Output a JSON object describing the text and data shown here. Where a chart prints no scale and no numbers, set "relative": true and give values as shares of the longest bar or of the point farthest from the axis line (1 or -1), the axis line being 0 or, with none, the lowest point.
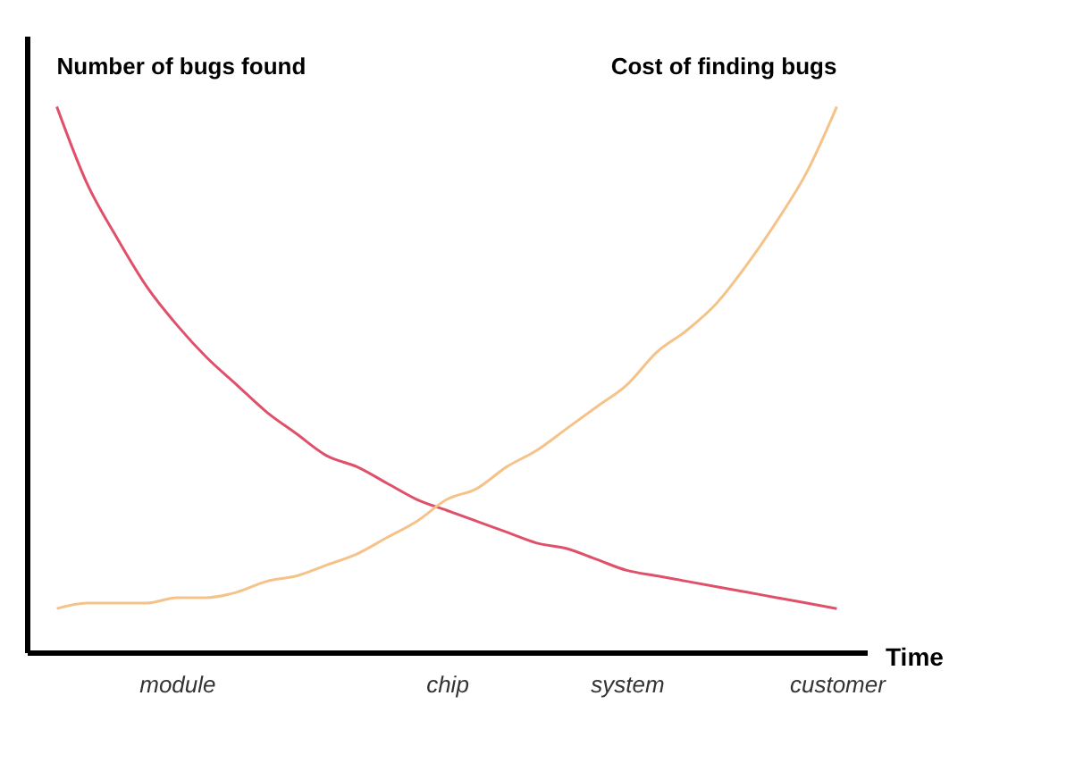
{
  "chart_data": {
    "type": "line",
    "relative": true,
    "xlabel": "Time",
    "categories": [
      null,
      null,
      null,
      null,
      "module",
      null,
      null,
      null,
      null,
      null,
      null,
      null,
      null,
      "chip",
      null,
      null,
      null,
      null,
      null,
      "system",
      null,
      null,
      null,
      null,
      null,
      null,
      "customer"
    ],
    "series": [
      {
        "name": "Number of bugs found",
        "color": "#e0506a",
        "values": [
          1.0,
          0.86,
          0.76,
          0.67,
          0.6,
          0.54,
          0.49,
          0.44,
          0.4,
          0.36,
          0.34,
          0.31,
          0.28,
          0.26,
          0.24,
          0.22,
          0.2,
          0.19,
          0.17,
          0.15,
          0.14,
          0.13,
          0.12,
          0.11,
          0.1,
          0.09,
          0.08
        ]
      },
      {
        "name": "Cost of finding bugs",
        "color": "#f5c38a",
        "values": [
          0.08,
          0.09,
          0.09,
          0.09,
          0.1,
          0.1,
          0.11,
          0.13,
          0.14,
          0.16,
          0.18,
          0.21,
          0.24,
          0.28,
          0.3,
          0.34,
          0.37,
          0.41,
          0.45,
          0.49,
          0.55,
          0.59,
          0.64,
          0.71,
          0.79,
          0.88,
          1.0
        ]
      }
    ],
    "grid": false,
    "legend": false,
    "marker": "none",
    "line_style": "solid"
  }
}
